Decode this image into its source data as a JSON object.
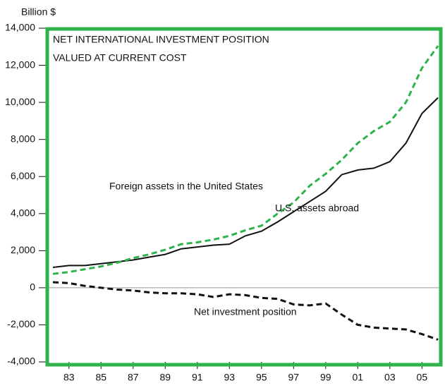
{
  "chart_data": {
    "type": "line",
    "title": "NET INTERNATIONAL INVESTMENT POSITION",
    "subtitle": "VALUED AT CURRENT COST",
    "y_label": "Billion $",
    "x": [
      1982,
      1983,
      1984,
      1985,
      1986,
      1987,
      1988,
      1989,
      1990,
      1991,
      1992,
      1993,
      1994,
      1995,
      1996,
      1997,
      1998,
      1999,
      2000,
      2001,
      2002,
      2003,
      2004,
      2005,
      2006
    ],
    "series": [
      {
        "name": "U.S. assets abroad",
        "color": "#111111",
        "dash": "solid",
        "values": [
          1100,
          1200,
          1200,
          1300,
          1400,
          1500,
          1650,
          1800,
          2100,
          2200,
          2300,
          2350,
          2800,
          3050,
          3550,
          4100,
          4650,
          5200,
          6100,
          6350,
          6450,
          6800,
          7800,
          9400,
          10250
        ]
      },
      {
        "name": "Foreign assets in the United States",
        "color": "#2db34a",
        "dash": "dashed",
        "values": [
          750,
          850,
          1000,
          1150,
          1350,
          1600,
          1800,
          2050,
          2350,
          2450,
          2600,
          2800,
          3100,
          3350,
          4000,
          4600,
          5500,
          6150,
          6900,
          7800,
          8450,
          8950,
          10000,
          11850,
          13050
        ]
      },
      {
        "name": "Net investment position",
        "color": "#111111",
        "dash": "dashed",
        "values": [
          300,
          250,
          100,
          0,
          -100,
          -150,
          -250,
          -300,
          -300,
          -350,
          -500,
          -350,
          -400,
          -550,
          -600,
          -900,
          -950,
          -850,
          -1450,
          -2000,
          -2150,
          -2200,
          -2250,
          -2500,
          -2800
        ]
      }
    ],
    "xlim": [
      1981.56,
      2006.26
    ],
    "xticks": [
      {
        "value": 1983,
        "label": "83"
      },
      {
        "value": 1985,
        "label": "85"
      },
      {
        "value": 1987,
        "label": "87"
      },
      {
        "value": 1989,
        "label": "89"
      },
      {
        "value": 1991,
        "label": "91"
      },
      {
        "value": 1993,
        "label": "93"
      },
      {
        "value": 1995,
        "label": "95"
      },
      {
        "value": 1997,
        "label": "97"
      },
      {
        "value": 1999,
        "label": "99"
      },
      {
        "value": 2001,
        "label": "01"
      },
      {
        "value": 2003,
        "label": "03"
      },
      {
        "value": 2005,
        "label": "05"
      }
    ],
    "ylim": [
      -4000,
      14000
    ],
    "yticks": [
      {
        "value": -4000,
        "label": "-4,000"
      },
      {
        "value": -2000,
        "label": "-2,000"
      },
      0,
      {
        "value": 2000,
        "label": "2,000"
      },
      {
        "value": 4000,
        "label": "4,000"
      },
      {
        "value": 6000,
        "label": "6,000"
      },
      {
        "value": 8000,
        "label": "8,000"
      },
      {
        "value": 10000,
        "label": "10,000"
      },
      {
        "value": 12000,
        "label": "12,000"
      },
      {
        "value": 14000,
        "label": "14,000"
      }
    ],
    "frame_color": "#2db34a"
  }
}
